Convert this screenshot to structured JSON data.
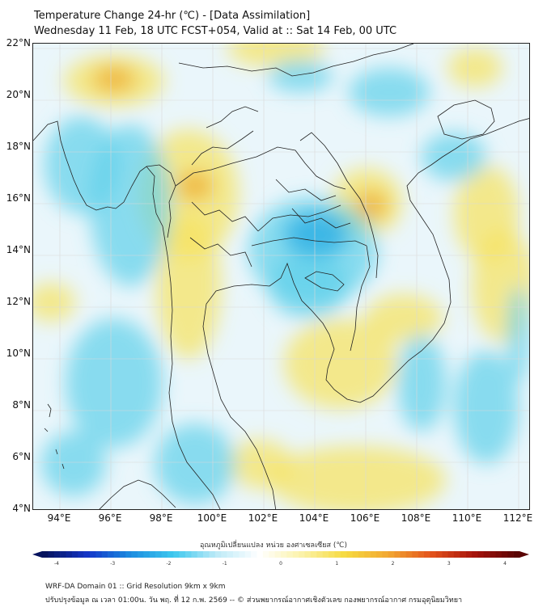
{
  "header": {
    "title": "Temperature Change 24-hr (℃) - [Data Assimilation]",
    "subtitle": "Wednesday 11 Feb, 18 UTC FCST+054, Valid at :: Sat 14 Feb, 00 UTC"
  },
  "map": {
    "lat_labels": [
      "22°N",
      "20°N",
      "18°N",
      "16°N",
      "14°N",
      "12°N",
      "10°N",
      "8°N",
      "6°N",
      "4°N"
    ],
    "lon_labels": [
      "94°E",
      "96°E",
      "98°E",
      "100°E",
      "102°E",
      "104°E",
      "106°E",
      "108°E",
      "110°E",
      "112°E"
    ],
    "colors": {
      "background": "#eaf6fb",
      "land_line": "#222222",
      "gridline": "#d9d9d9",
      "warm": "#f6e25c",
      "warm_strong": "#f0b43c",
      "cool": "#5ed0ea",
      "cool_strong": "#36b4e6"
    }
  },
  "colorbar": {
    "label": "อุณหภูมิเปลี่ยนแปลง หน่วย องศาเซลเซียส (℃)",
    "ticks": [
      "-4",
      "-3",
      "-2",
      "-1",
      "0",
      "1",
      "2",
      "3",
      "4"
    ],
    "stops": [
      "#06135e",
      "#1436c8",
      "#1c8de0",
      "#3ec8ee",
      "#bdeaf7",
      "#ffffff",
      "#fbf2a8",
      "#f6da40",
      "#f2a832",
      "#e4541c",
      "#a8140c",
      "#5a0404"
    ]
  },
  "footer": {
    "line1": "WRF-DA Domain 01 :: Grid Resolution 9km x 9km",
    "line2": "ปรับปรุงข้อมูล ณ เวลา 01:00น. วัน พฤ. ที่ 12 ก.พ. 2569 -- © ส่วนพยากรณ์อากาศเชิงตัวเลข กองพยากรณ์อากาศ กรมอุตุนิยมวิทยา"
  }
}
